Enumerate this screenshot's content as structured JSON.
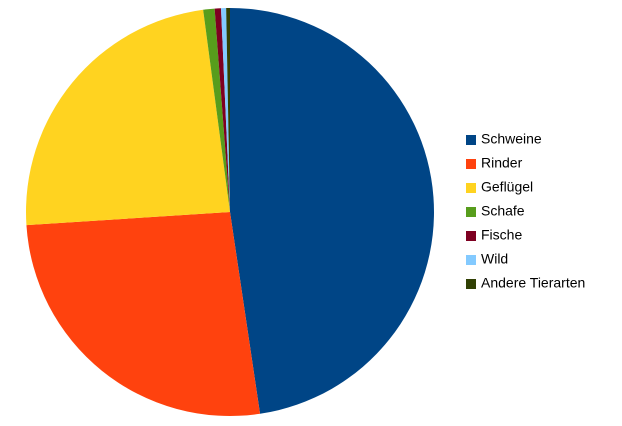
{
  "chart_data": {
    "type": "pie",
    "categories": [
      "Schweine",
      "Rinder",
      "Geflügel",
      "Schafe",
      "Fische",
      "Wild",
      "Andere Tierarten"
    ],
    "values": [
      47.6,
      26.3,
      23.9,
      0.9,
      0.5,
      0.4,
      0.3
    ],
    "colors": [
      "#004586",
      "#ff420e",
      "#ffd320",
      "#579d1c",
      "#7e0021",
      "#83caff",
      "#314004"
    ],
    "legend": "right"
  }
}
